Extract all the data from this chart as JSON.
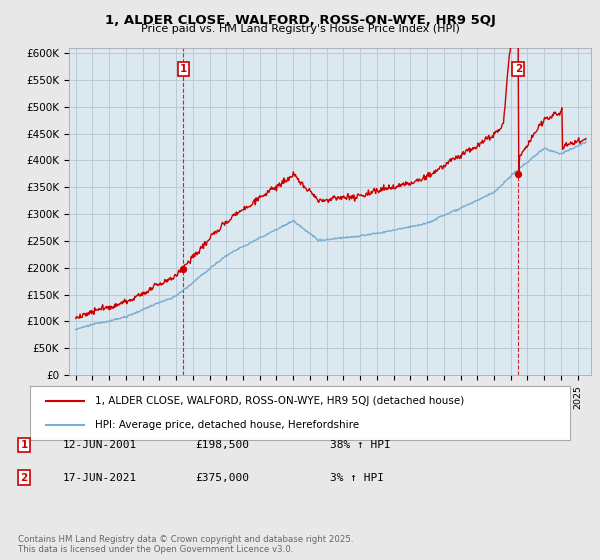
{
  "title_line1": "1, ALDER CLOSE, WALFORD, ROSS-ON-WYE, HR9 5QJ",
  "title_line2": "Price paid vs. HM Land Registry's House Price Index (HPI)",
  "ylabel_ticks": [
    "£0",
    "£50K",
    "£100K",
    "£150K",
    "£200K",
    "£250K",
    "£300K",
    "£350K",
    "£400K",
    "£450K",
    "£500K",
    "£550K",
    "£600K"
  ],
  "ytick_vals": [
    0,
    50000,
    100000,
    150000,
    200000,
    250000,
    300000,
    350000,
    400000,
    450000,
    500000,
    550000,
    600000
  ],
  "ylim": [
    0,
    610000
  ],
  "xlim_start": 1994.6,
  "xlim_end": 2025.8,
  "sale1": {
    "date_label": "12-JUN-2001",
    "price": 198500,
    "pct": "38%",
    "dir": "↑",
    "x": 2001.44,
    "marker_y": 198500
  },
  "sale2": {
    "date_label": "17-JUN-2021",
    "price": 375000,
    "pct": "3%",
    "dir": "↑",
    "x": 2021.46,
    "marker_y": 375000
  },
  "vline1_x": 2001.44,
  "vline2_x": 2021.46,
  "legend_label1": "1, ALDER CLOSE, WALFORD, ROSS-ON-WYE, HR9 5QJ (detached house)",
  "legend_label2": "HPI: Average price, detached house, Herefordshire",
  "footnote": "Contains HM Land Registry data © Crown copyright and database right 2025.\nThis data is licensed under the Open Government Licence v3.0.",
  "red_color": "#cc0000",
  "blue_color": "#7aadcf",
  "bg_color": "#e8e8e8",
  "plot_bg": "#dce8f0",
  "grid_color": "#b8ccd8"
}
